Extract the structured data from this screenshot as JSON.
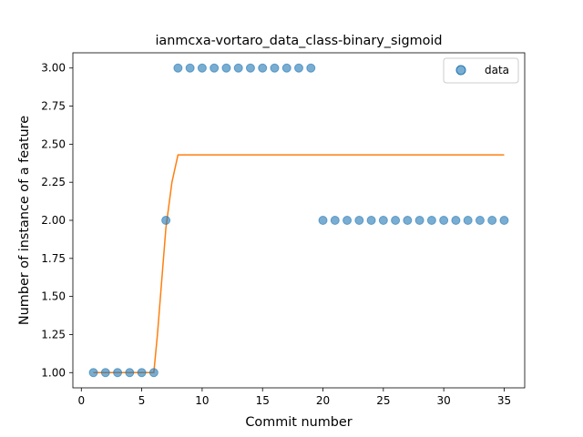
{
  "chart_data": {
    "type": "scatter",
    "title": "ianmcxa-vortaro_data_class-binary_sigmoid",
    "xlabel": "Commit number",
    "ylabel": "Number of instance of a feature",
    "xlim": [
      -0.7,
      36.7
    ],
    "ylim": [
      0.9,
      3.1
    ],
    "xticks": [
      0,
      5,
      10,
      15,
      20,
      25,
      30,
      35
    ],
    "xtick_labels": [
      "0",
      "5",
      "10",
      "15",
      "20",
      "25",
      "30",
      "35"
    ],
    "yticks": [
      1.0,
      1.25,
      1.5,
      1.75,
      2.0,
      2.25,
      2.5,
      2.75,
      3.0
    ],
    "ytick_labels": [
      "1.00",
      "1.25",
      "1.50",
      "1.75",
      "2.00",
      "2.25",
      "2.50",
      "2.75",
      "3.00"
    ],
    "grid": false,
    "legend": {
      "position": "top-right",
      "entries": [
        "data"
      ]
    },
    "colors": {
      "scatter": "#1f77b4",
      "fit": "#ff7f0e"
    },
    "series": [
      {
        "name": "data",
        "kind": "scatter",
        "x": [
          1,
          2,
          3,
          4,
          5,
          6,
          7,
          8,
          9,
          10,
          11,
          12,
          13,
          14,
          15,
          16,
          17,
          18,
          19,
          20,
          21,
          22,
          23,
          24,
          25,
          26,
          27,
          28,
          29,
          30,
          31,
          32,
          33,
          34,
          35
        ],
        "y": [
          1,
          1,
          1,
          1,
          1,
          1,
          2,
          3,
          3,
          3,
          3,
          3,
          3,
          3,
          3,
          3,
          3,
          3,
          3,
          2,
          2,
          2,
          2,
          2,
          2,
          2,
          2,
          2,
          2,
          2,
          2,
          2,
          2,
          2,
          2
        ]
      },
      {
        "kind": "line",
        "x": [
          1,
          6,
          6.3,
          7,
          7.5,
          8,
          35
        ],
        "y": [
          1.0,
          1.0,
          1.25,
          1.95,
          2.25,
          2.43,
          2.43
        ]
      }
    ]
  }
}
